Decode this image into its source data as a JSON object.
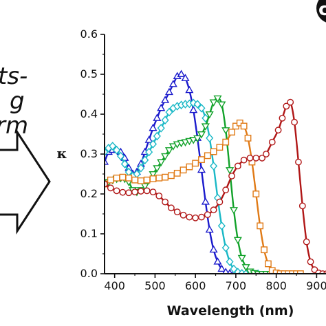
{
  "left_text": {
    "lines": [
      "ts-",
      "g",
      "rm"
    ]
  },
  "panel_label": "c",
  "colors": {
    "blue": "#1a1acc",
    "cyan": "#19b8c6",
    "green": "#12a22a",
    "orange": "#e07a16",
    "red": "#b01616",
    "axis": "#111111",
    "arrow": "#111111"
  },
  "chart_data": {
    "type": "line",
    "xlabel": "Wavelength (nm)",
    "ylabel": "κ",
    "xlim": [
      375,
      930
    ],
    "ylim": [
      0,
      0.6
    ],
    "xticks": [
      "400",
      "500",
      "600",
      "700",
      "800",
      "900"
    ],
    "xtick_values": [
      400,
      500,
      600,
      700,
      800,
      900
    ],
    "yticks": [
      "0.0",
      "0.1",
      "0.2",
      "0.3",
      "0.4",
      "0.5",
      "0.6"
    ],
    "ytick_values": [
      0,
      0.1,
      0.2,
      0.3,
      0.4,
      0.5,
      0.6
    ],
    "grid": false,
    "legend": "none",
    "series": [
      {
        "color": "#1a1acc",
        "marker": "triangle-up",
        "points": [
          [
            375,
            0.28
          ],
          [
            385,
            0.305
          ],
          [
            395,
            0.31
          ],
          [
            405,
            0.31
          ],
          [
            415,
            0.305
          ],
          [
            425,
            0.29
          ],
          [
            435,
            0.265
          ],
          [
            445,
            0.25
          ],
          [
            455,
            0.255
          ],
          [
            465,
            0.275
          ],
          [
            475,
            0.305
          ],
          [
            485,
            0.335
          ],
          [
            495,
            0.365
          ],
          [
            505,
            0.39
          ],
          [
            515,
            0.415
          ],
          [
            525,
            0.435
          ],
          [
            535,
            0.455
          ],
          [
            545,
            0.475
          ],
          [
            555,
            0.495
          ],
          [
            565,
            0.5
          ],
          [
            575,
            0.49
          ],
          [
            585,
            0.46
          ],
          [
            595,
            0.41
          ],
          [
            605,
            0.34
          ],
          [
            615,
            0.26
          ],
          [
            625,
            0.18
          ],
          [
            635,
            0.11
          ],
          [
            645,
            0.06
          ],
          [
            655,
            0.03
          ],
          [
            665,
            0.012
          ],
          [
            675,
            0.004
          ],
          [
            685,
            0.001
          ],
          [
            695,
            0.0
          ],
          [
            705,
            0.0
          ],
          [
            715,
            0.0
          ],
          [
            725,
            0.0
          ]
        ]
      },
      {
        "color": "#19b8c6",
        "marker": "diamond",
        "points": [
          [
            375,
            0.305
          ],
          [
            385,
            0.315
          ],
          [
            395,
            0.32
          ],
          [
            405,
            0.31
          ],
          [
            415,
            0.295
          ],
          [
            425,
            0.275
          ],
          [
            435,
            0.255
          ],
          [
            445,
            0.245
          ],
          [
            455,
            0.25
          ],
          [
            465,
            0.265
          ],
          [
            475,
            0.285
          ],
          [
            485,
            0.305
          ],
          [
            495,
            0.325
          ],
          [
            505,
            0.345
          ],
          [
            515,
            0.365
          ],
          [
            525,
            0.385
          ],
          [
            535,
            0.405
          ],
          [
            545,
            0.415
          ],
          [
            555,
            0.42
          ],
          [
            565,
            0.423
          ],
          [
            575,
            0.425
          ],
          [
            585,
            0.426
          ],
          [
            595,
            0.428
          ],
          [
            605,
            0.425
          ],
          [
            615,
            0.415
          ],
          [
            625,
            0.39
          ],
          [
            635,
            0.34
          ],
          [
            645,
            0.27
          ],
          [
            655,
            0.19
          ],
          [
            665,
            0.12
          ],
          [
            675,
            0.065
          ],
          [
            685,
            0.03
          ],
          [
            695,
            0.012
          ],
          [
            705,
            0.004
          ],
          [
            715,
            0.001
          ],
          [
            725,
            0.0
          ],
          [
            735,
            0.0
          ],
          [
            745,
            0.0
          ],
          [
            755,
            0.0
          ]
        ]
      },
      {
        "color": "#12a22a",
        "marker": "triangle-down",
        "points": [
          [
            375,
            0.225
          ],
          [
            385,
            0.23
          ],
          [
            395,
            0.235
          ],
          [
            405,
            0.238
          ],
          [
            415,
            0.24
          ],
          [
            425,
            0.238
          ],
          [
            435,
            0.23
          ],
          [
            445,
            0.21
          ],
          [
            455,
            0.205
          ],
          [
            465,
            0.21
          ],
          [
            475,
            0.22
          ],
          [
            485,
            0.235
          ],
          [
            495,
            0.25
          ],
          [
            505,
            0.265
          ],
          [
            515,
            0.28
          ],
          [
            525,
            0.295
          ],
          [
            535,
            0.31
          ],
          [
            545,
            0.32
          ],
          [
            555,
            0.325
          ],
          [
            565,
            0.328
          ],
          [
            575,
            0.33
          ],
          [
            585,
            0.333
          ],
          [
            595,
            0.336
          ],
          [
            605,
            0.34
          ],
          [
            615,
            0.35
          ],
          [
            625,
            0.37
          ],
          [
            635,
            0.4
          ],
          [
            645,
            0.43
          ],
          [
            655,
            0.44
          ],
          [
            665,
            0.425
          ],
          [
            675,
            0.36
          ],
          [
            685,
            0.26
          ],
          [
            695,
            0.16
          ],
          [
            705,
            0.085
          ],
          [
            715,
            0.04
          ],
          [
            725,
            0.017
          ],
          [
            735,
            0.006
          ],
          [
            745,
            0.002
          ],
          [
            755,
            0.0
          ],
          [
            765,
            0.0
          ],
          [
            775,
            0.0
          ],
          [
            785,
            0.0
          ],
          [
            795,
            0.0
          ]
        ]
      },
      {
        "color": "#e07a16",
        "marker": "square",
        "points": [
          [
            375,
            0.225
          ],
          [
            390,
            0.235
          ],
          [
            405,
            0.24
          ],
          [
            420,
            0.242
          ],
          [
            435,
            0.24
          ],
          [
            450,
            0.235
          ],
          [
            465,
            0.233
          ],
          [
            480,
            0.235
          ],
          [
            495,
            0.238
          ],
          [
            510,
            0.24
          ],
          [
            525,
            0.242
          ],
          [
            540,
            0.246
          ],
          [
            555,
            0.252
          ],
          [
            570,
            0.26
          ],
          [
            585,
            0.268
          ],
          [
            600,
            0.277
          ],
          [
            615,
            0.286
          ],
          [
            630,
            0.296
          ],
          [
            645,
            0.306
          ],
          [
            660,
            0.317
          ],
          [
            675,
            0.33
          ],
          [
            690,
            0.355
          ],
          [
            700,
            0.37
          ],
          [
            710,
            0.378
          ],
          [
            720,
            0.37
          ],
          [
            730,
            0.34
          ],
          [
            740,
            0.28
          ],
          [
            750,
            0.2
          ],
          [
            760,
            0.12
          ],
          [
            770,
            0.06
          ],
          [
            780,
            0.025
          ],
          [
            790,
            0.008
          ],
          [
            800,
            0.002
          ],
          [
            810,
            0.0
          ],
          [
            820,
            0.0
          ],
          [
            830,
            0.0
          ],
          [
            840,
            0.0
          ],
          [
            850,
            0.0
          ],
          [
            860,
            0.0
          ]
        ]
      },
      {
        "color": "#b01616",
        "marker": "circle",
        "points": [
          [
            375,
            0.225
          ],
          [
            390,
            0.215
          ],
          [
            405,
            0.208
          ],
          [
            420,
            0.204
          ],
          [
            435,
            0.203
          ],
          [
            450,
            0.205
          ],
          [
            465,
            0.207
          ],
          [
            480,
            0.208
          ],
          [
            495,
            0.205
          ],
          [
            510,
            0.195
          ],
          [
            525,
            0.18
          ],
          [
            540,
            0.165
          ],
          [
            555,
            0.155
          ],
          [
            570,
            0.147
          ],
          [
            585,
            0.142
          ],
          [
            600,
            0.14
          ],
          [
            615,
            0.142
          ],
          [
            630,
            0.148
          ],
          [
            645,
            0.16
          ],
          [
            660,
            0.18
          ],
          [
            675,
            0.21
          ],
          [
            690,
            0.245
          ],
          [
            705,
            0.27
          ],
          [
            720,
            0.285
          ],
          [
            735,
            0.29
          ],
          [
            750,
            0.29
          ],
          [
            765,
            0.29
          ],
          [
            775,
            0.3
          ],
          [
            790,
            0.33
          ],
          [
            805,
            0.36
          ],
          [
            815,
            0.39
          ],
          [
            825,
            0.42
          ],
          [
            835,
            0.43
          ],
          [
            845,
            0.38
          ],
          [
            855,
            0.28
          ],
          [
            865,
            0.17
          ],
          [
            875,
            0.08
          ],
          [
            885,
            0.03
          ],
          [
            895,
            0.01
          ],
          [
            905,
            0.002
          ],
          [
            915,
            0.0
          ],
          [
            925,
            0.0
          ],
          [
            930,
            0.0
          ]
        ]
      }
    ]
  }
}
